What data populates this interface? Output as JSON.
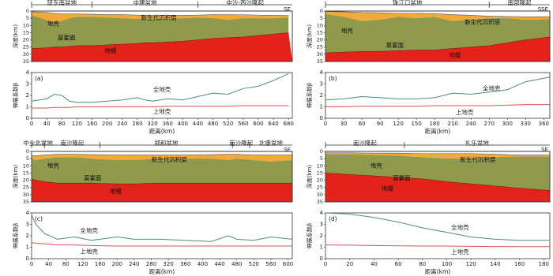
{
  "chart_data": [
    {
      "type": "line",
      "panel": "(a)",
      "direction": "SE",
      "regions": [
        {
          "name": "琼东南盆地",
          "from": 0,
          "to": 160
        },
        {
          "name": "中建盆地",
          "from": 160,
          "to": 440
        },
        {
          "name": "中沙-西沙隆起",
          "from": 440,
          "to": 690
        }
      ],
      "section": {
        "ylabel": "深度(km)",
        "ylim": [
          0,
          35
        ],
        "yticks": [
          0,
          5,
          10,
          15,
          20,
          25,
          30,
          35
        ],
        "labels": {
          "crust": "地壳",
          "sediment": "新生代沉积层",
          "moho": "莫霍面",
          "mantle": "地幔"
        },
        "seafloor": [
          0.5,
          1,
          1.5,
          2,
          2,
          2,
          2.2,
          2.5,
          2.5,
          2.8,
          3,
          3,
          3.2,
          3,
          2.8,
          2.5,
          2.5,
          2.6,
          2.8,
          3,
          3.2
        ],
        "basement": [
          3,
          6,
          8,
          7,
          5,
          4,
          4,
          4.5,
          5,
          5.5,
          5,
          5,
          5.5,
          5,
          4.5,
          5,
          6,
          5,
          5,
          5,
          4.5
        ],
        "moho": [
          26,
          25.5,
          25,
          25,
          24.5,
          24,
          24,
          23.5,
          23,
          22.5,
          22,
          22,
          21.5,
          21,
          20,
          19,
          18.5,
          18,
          17,
          16,
          15
        ]
      },
      "ylabel": "伸展系数β",
      "xlabel": "距离(km)",
      "xlim": [
        0,
        690
      ],
      "xticks": [
        0,
        40,
        80,
        120,
        160,
        200,
        240,
        280,
        320,
        360,
        400,
        440,
        480,
        520,
        560,
        600,
        640,
        680
      ],
      "ylim": [
        0,
        4
      ],
      "yticks": [
        0,
        1,
        2,
        3,
        4
      ],
      "x": [
        0,
        40,
        60,
        80,
        100,
        120,
        160,
        200,
        240,
        280,
        300,
        320,
        360,
        400,
        440,
        480,
        520,
        560,
        600,
        640,
        680
      ],
      "series": [
        {
          "name": "全地壳",
          "color": "#4f8a7a",
          "values": [
            1.5,
            1.7,
            2.1,
            2.0,
            1.5,
            1.4,
            1.4,
            1.5,
            1.6,
            1.8,
            1.6,
            1.5,
            1.7,
            1.6,
            1.9,
            2.2,
            2.1,
            2.6,
            2.8,
            3.3,
            3.9
          ]
        },
        {
          "name": "上地壳",
          "color": "#d9534f",
          "values": [
            0.9,
            0.9,
            0.95,
            0.95,
            0.95,
            1.0,
            1.0,
            1.0,
            1.0,
            1.0,
            1.0,
            1.0,
            1.05,
            1.05,
            1.05,
            1.05,
            1.05,
            1.1,
            1.1,
            1.1,
            1.1
          ]
        }
      ]
    },
    {
      "type": "line",
      "panel": "(b)",
      "direction": "SSE",
      "regions": [
        {
          "name": "珠江口盆地",
          "from": 0,
          "to": 270
        },
        {
          "name": "南部隆起",
          "from": 270,
          "to": 370
        }
      ],
      "section": {
        "ylabel": "深度(km)",
        "ylim": [
          0,
          35
        ],
        "yticks": [
          0,
          5,
          10,
          15,
          20,
          25,
          30,
          35
        ],
        "labels": {
          "crust": "地壳",
          "sediment": "新生代沉积层",
          "moho": "莫霍面",
          "mantle": "地幔"
        },
        "seafloor": [
          0.3,
          0.5,
          1,
          1.2,
          1.5,
          1.5,
          1.8,
          2.5,
          3,
          3.5,
          3.8,
          4,
          4,
          4
        ],
        "basement": [
          2,
          4,
          7,
          6,
          4,
          5,
          4,
          7,
          6,
          5,
          5,
          6,
          6,
          5.5
        ],
        "moho": [
          29,
          28.5,
          28,
          28,
          27.5,
          27,
          27,
          26,
          25,
          24,
          22,
          20,
          19,
          18
        ]
      },
      "ylabel": "伸展系数β",
      "xlabel": "距离(km)",
      "xlim": [
        0,
        370
      ],
      "xticks": [
        0,
        30,
        60,
        90,
        120,
        150,
        180,
        210,
        240,
        270,
        300,
        330,
        360
      ],
      "ylim": [
        0,
        4
      ],
      "yticks": [
        0,
        1,
        2,
        3,
        4
      ],
      "x": [
        0,
        30,
        60,
        90,
        120,
        150,
        180,
        210,
        240,
        270,
        300,
        330,
        350,
        370
      ],
      "series": [
        {
          "name": "全地壳",
          "color": "#4f8a7a",
          "values": [
            1.6,
            1.7,
            1.9,
            1.8,
            1.7,
            1.7,
            1.8,
            2.2,
            2.1,
            2.3,
            2.5,
            3.2,
            3.4,
            3.6
          ]
        },
        {
          "name": "上地壳",
          "color": "#d9534f",
          "values": [
            1.0,
            1.0,
            1.05,
            1.05,
            1.05,
            1.05,
            1.1,
            1.1,
            1.1,
            1.1,
            1.15,
            1.2,
            1.2,
            1.2
          ]
        }
      ]
    },
    {
      "type": "line",
      "panel": "(c)",
      "direction": "SE",
      "regions": [
        {
          "name": "中业北盆地",
          "from": 0,
          "to": 30
        },
        {
          "name": "南沙隆起",
          "from": 30,
          "to": 160
        },
        {
          "name": "郑和盆地",
          "from": 160,
          "to": 470
        },
        {
          "name": "南沙隆起",
          "from": 470,
          "to": 510
        },
        {
          "name": "北康盆地",
          "from": 510,
          "to": 610
        }
      ],
      "section": {
        "ylabel": "深度(km)",
        "ylim": [
          0,
          35
        ],
        "yticks": [
          0,
          5,
          10,
          15,
          20,
          25,
          30,
          35
        ],
        "labels": {
          "crust": "地壳",
          "sediment": "新生代沉积层",
          "moho": "莫霍面",
          "mantle": "地幔"
        },
        "seafloor": [
          3,
          3,
          2.5,
          2,
          2,
          2.2,
          2.5,
          2.5,
          2.5,
          2.5,
          2.2,
          2,
          2,
          2.5,
          2.5,
          2.5
        ],
        "basement": [
          5,
          6,
          5,
          4,
          4,
          5,
          6,
          6,
          5,
          5,
          5,
          6,
          5,
          6,
          7,
          6
        ],
        "moho": [
          19,
          20,
          21,
          22,
          22,
          22,
          22.5,
          22.5,
          22,
          22,
          22,
          22,
          22,
          22,
          22,
          22
        ]
      },
      "ylabel": "伸展系数β",
      "xlabel": "距离(km)",
      "xlim": [
        0,
        610
      ],
      "xticks": [
        0,
        40,
        80,
        120,
        160,
        200,
        240,
        280,
        320,
        360,
        400,
        440,
        480,
        520,
        560,
        600
      ],
      "ylim": [
        0,
        4
      ],
      "yticks": [
        0,
        1,
        2,
        3,
        4
      ],
      "x": [
        0,
        10,
        30,
        60,
        100,
        140,
        200,
        240,
        300,
        360,
        420,
        460,
        480,
        520,
        560,
        610
      ],
      "series": [
        {
          "name": "全地壳",
          "color": "#4f8a7a",
          "values": [
            3.8,
            3.0,
            2.2,
            1.7,
            1.9,
            1.6,
            1.9,
            1.7,
            1.7,
            1.6,
            1.5,
            2.0,
            1.7,
            1.6,
            1.9,
            1.7
          ]
        },
        {
          "name": "上地壳",
          "color": "#d9534f",
          "values": [
            1.4,
            1.35,
            1.3,
            1.2,
            1.2,
            1.15,
            1.1,
            1.1,
            1.1,
            1.1,
            1.1,
            1.1,
            1.1,
            1.1,
            1.1,
            1.1
          ]
        }
      ]
    },
    {
      "type": "line",
      "panel": "(d)",
      "direction": "SE",
      "regions": [
        {
          "name": "南沙隆起",
          "from": 0,
          "to": 65
        },
        {
          "name": "礼乐盆地",
          "from": 65,
          "to": 185
        }
      ],
      "section": {
        "ylabel": "深度(km)",
        "ylim": [
          0,
          35
        ],
        "yticks": [
          0,
          5,
          10,
          15,
          20,
          25,
          30,
          35
        ],
        "labels": {
          "crust": "地壳",
          "sediment": "新生代沉积层",
          "moho": "莫霍面",
          "mantle": "地幔"
        },
        "seafloor": [
          1,
          1,
          1.2,
          1.2,
          1.5,
          1.5,
          1.5,
          2,
          2.5,
          2.5
        ],
        "basement": [
          2,
          2,
          2.5,
          3,
          4,
          5,
          5,
          4,
          3.5,
          3.5
        ],
        "moho": [
          15,
          16,
          17,
          18,
          19,
          21,
          22.5,
          24,
          25.5,
          27
        ]
      },
      "ylabel": "伸展系数β",
      "xlabel": "距离(km)",
      "xlim": [
        0,
        185
      ],
      "xticks": [
        0,
        20,
        40,
        60,
        80,
        100,
        120,
        140,
        160,
        180
      ],
      "ylim": [
        0,
        4
      ],
      "yticks": [
        0,
        1,
        2,
        3,
        4
      ],
      "x": [
        0,
        20,
        40,
        60,
        80,
        100,
        120,
        140,
        160,
        185
      ],
      "series": [
        {
          "name": "全地壳",
          "color": "#4f8a7a",
          "values": [
            4.0,
            3.9,
            3.6,
            3.2,
            2.7,
            2.3,
            1.9,
            1.7,
            1.6,
            1.6
          ]
        },
        {
          "name": "上地壳",
          "color": "#d9534f",
          "values": [
            1.2,
            1.18,
            1.15,
            1.12,
            1.1,
            1.1,
            1.08,
            1.06,
            1.05,
            1.05
          ]
        }
      ]
    }
  ]
}
